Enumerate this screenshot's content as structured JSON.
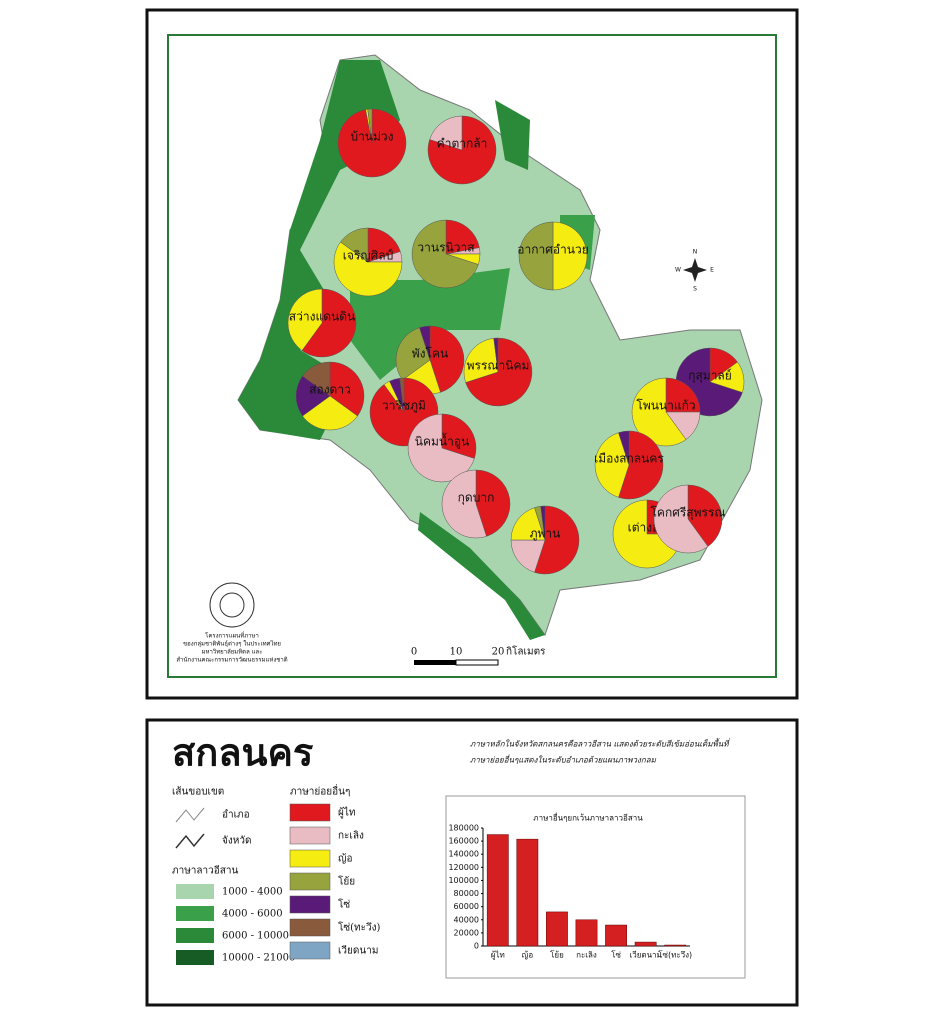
{
  "map": {
    "compass": {
      "n": "N",
      "s": "S",
      "e": "E",
      "w": "W"
    },
    "scale": {
      "ticks": [
        0,
        10,
        20
      ],
      "unit": "กิโลเมตร"
    },
    "credits": [
      "โครงการแผนที่ภาษา",
      "ของกลุ่มชาติพันธุ์ต่างๆ ในประเทศไทย",
      "มหาวิทยาลัยมหิดล และ",
      "สำนักงานคณะกรรมการวัฒนธรรมแห่งชาติ"
    ],
    "districts": [
      {
        "label": "บ้านม่วง",
        "values": [
          97,
          0,
          1,
          2,
          0,
          0,
          0
        ]
      },
      {
        "label": "คำตากล้า",
        "values": [
          80,
          20,
          0,
          0,
          0,
          0,
          0
        ]
      },
      {
        "label": "เจริญศิลป์",
        "values": [
          20,
          5,
          60,
          15,
          0,
          0,
          0
        ]
      },
      {
        "label": "วานรนิวาส",
        "values": [
          22,
          3,
          5,
          70,
          0,
          0,
          0
        ]
      },
      {
        "label": "อากาศอำนวย",
        "values": [
          0,
          0,
          50,
          50,
          0,
          0,
          0
        ]
      },
      {
        "label": "สว่างแดนดิน",
        "values": [
          60,
          0,
          40,
          0,
          0,
          0,
          0
        ]
      },
      {
        "label": "พังโคน",
        "values": [
          45,
          0,
          20,
          30,
          5,
          0,
          0
        ]
      },
      {
        "label": "พรรณานิคม",
        "values": [
          70,
          0,
          28,
          0,
          2,
          0,
          0
        ]
      },
      {
        "label": "ส่องดาว",
        "values": [
          35,
          0,
          30,
          0,
          20,
          15,
          0
        ]
      },
      {
        "label": "วาริชภูมิ",
        "values": [
          90,
          0,
          3,
          0,
          5,
          2,
          0
        ]
      },
      {
        "label": "นิคมน้ำอูน",
        "values": [
          30,
          70,
          0,
          0,
          0,
          0,
          0
        ]
      },
      {
        "label": "กุสุมาลย์",
        "values": [
          15,
          0,
          15,
          0,
          70,
          0,
          0
        ]
      },
      {
        "label": "โพนนาแก้ว",
        "values": [
          25,
          15,
          60,
          0,
          0,
          0,
          0
        ]
      },
      {
        "label": "เมืองสกลนคร",
        "values": [
          55,
          0,
          40,
          0,
          5,
          0,
          0
        ]
      },
      {
        "label": "กุดบาก",
        "values": [
          45,
          55,
          0,
          0,
          0,
          0,
          0
        ]
      },
      {
        "label": "ภูพาน",
        "values": [
          55,
          20,
          20,
          3,
          2,
          0,
          0
        ]
      },
      {
        "label": "เต่างอย",
        "values": [
          25,
          0,
          75,
          0,
          0,
          0,
          0
        ]
      },
      {
        "label": "โคกศรีสุพรรณ",
        "values": [
          40,
          60,
          0,
          0,
          0,
          0,
          0
        ]
      }
    ]
  },
  "legend": {
    "title": "สกลนคร",
    "caption": [
      "ภาษาหลักในจังหวัดสกลนครคือลาวอีสาน แสดงด้วยระดับสีเข้มอ่อนเต็มพื้นที่",
      "ภาษาย่อยอื่นๆแสดงในระดับอำเภอด้วยแผนภาพวงกลม"
    ],
    "boundary_title": "เส้นขอบเขต",
    "boundaries": [
      "อำเภอ",
      "จังหวัด"
    ],
    "lao_title": "ภาษาลาวอีสาน",
    "lao_levels": [
      {
        "label": "1000 - 4000",
        "color": "#a8d5ae"
      },
      {
        "label": "4000 - 6000",
        "color": "#3aa04a"
      },
      {
        "label": "6000 - 10000",
        "color": "#2a8a3a"
      },
      {
        "label": "10000 - 21000",
        "color": "#175c24"
      }
    ],
    "languages_title": "ภาษาย่อยอื่นๆ",
    "languages": [
      {
        "label": "ผู้ไท",
        "color": "#e0191e"
      },
      {
        "label": "กะเลิง",
        "color": "#e8bcc2"
      },
      {
        "label": "ญ้อ",
        "color": "#f5ec12"
      },
      {
        "label": "โย้ย",
        "color": "#97a33c"
      },
      {
        "label": "โซ่",
        "color": "#5a1a78"
      },
      {
        "label": "โซ่(ทะวึง)",
        "color": "#8a5a3c"
      },
      {
        "label": "เวียดนาม",
        "color": "#7ea6c4"
      }
    ]
  },
  "chart_data": {
    "type": "bar",
    "title": "ภาษาอื่นๆยกเว้นภาษาลาวอีสาน",
    "categories": [
      "ผู้ไท",
      "ญ้อ",
      "โย้ย",
      "กะเลิง",
      "โซ่",
      "เวียดนาม",
      "โซ่(ทะวึง)"
    ],
    "values": [
      170000,
      163000,
      52000,
      40000,
      32000,
      6000,
      1500
    ],
    "color": "#d42020",
    "ylim": [
      0,
      180000
    ],
    "yticks": [
      0,
      20000,
      40000,
      60000,
      80000,
      100000,
      120000,
      140000,
      160000,
      180000
    ],
    "grid": false
  }
}
